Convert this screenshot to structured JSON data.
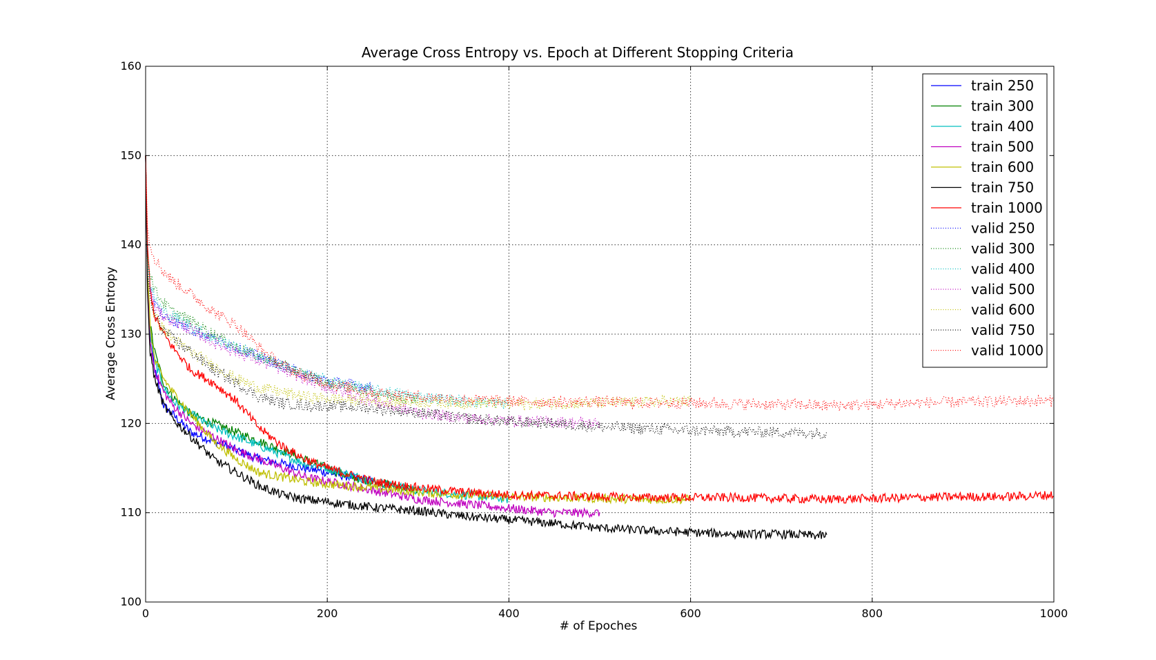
{
  "chart_data": {
    "type": "line",
    "title": "Average Cross Entropy vs. Epoch  at Different Stopping Criteria",
    "xlabel": "# of Epoches",
    "ylabel": "Average Cross Entropy",
    "xlim": [
      0,
      1000
    ],
    "ylim": [
      100,
      160
    ],
    "xticks": [
      "0",
      "200",
      "400",
      "600",
      "800",
      "1000"
    ],
    "yticks": [
      "100",
      "110",
      "120",
      "130",
      "140",
      "150",
      "160"
    ],
    "grid": true,
    "legend_position": "top-right",
    "series": [
      {
        "name": "train 250",
        "style": "solid",
        "color": "#0000ff",
        "x": [
          0,
          2,
          5,
          10,
          20,
          30,
          50,
          75,
          100,
          125,
          150,
          175,
          200,
          225,
          250
        ],
        "y": [
          150,
          136,
          130,
          126,
          122,
          121,
          119,
          118,
          117,
          116,
          115.5,
          115,
          114.5,
          114,
          113.5
        ]
      },
      {
        "name": "train 300",
        "style": "solid",
        "color": "#008000",
        "x": [
          0,
          2,
          5,
          10,
          20,
          30,
          50,
          75,
          100,
          125,
          150,
          175,
          200,
          225,
          250,
          275,
          300
        ],
        "y": [
          150,
          137,
          131,
          128,
          124.5,
          123,
          121,
          120,
          119,
          118,
          117,
          116,
          115,
          114,
          113.5,
          113,
          112.5
        ]
      },
      {
        "name": "train 400",
        "style": "solid",
        "color": "#00bfbf",
        "x": [
          0,
          2,
          5,
          10,
          20,
          30,
          50,
          75,
          100,
          125,
          150,
          175,
          200,
          250,
          300,
          350,
          400
        ],
        "y": [
          150,
          137,
          130,
          127,
          124,
          122.5,
          121,
          119.5,
          118.5,
          117.5,
          116.5,
          115.5,
          115,
          113.5,
          112.5,
          112,
          111.5
        ]
      },
      {
        "name": "train 500",
        "style": "solid",
        "color": "#bf00bf",
        "x": [
          0,
          2,
          5,
          10,
          20,
          30,
          50,
          75,
          100,
          125,
          150,
          175,
          200,
          250,
          300,
          350,
          400,
          450,
          500
        ],
        "y": [
          150,
          136,
          129,
          126,
          123.5,
          122,
          120,
          118.5,
          117,
          116,
          115,
          114,
          113.5,
          112.5,
          111.5,
          111,
          110.5,
          110,
          110
        ]
      },
      {
        "name": "train 600",
        "style": "solid",
        "color": "#bfbf00",
        "x": [
          0,
          2,
          5,
          10,
          20,
          30,
          50,
          75,
          100,
          125,
          150,
          175,
          200,
          250,
          300,
          350,
          400,
          450,
          500,
          550,
          600
        ],
        "y": [
          150,
          137,
          131,
          127,
          125,
          123.5,
          121,
          118,
          116,
          114.5,
          114,
          113.5,
          113.2,
          112.8,
          112.3,
          112,
          111.8,
          111.7,
          111.6,
          111.5,
          111.5
        ]
      },
      {
        "name": "train 750",
        "style": "solid",
        "color": "#000000",
        "x": [
          0,
          2,
          5,
          10,
          20,
          30,
          50,
          75,
          100,
          125,
          150,
          175,
          200,
          250,
          300,
          350,
          400,
          450,
          500,
          550,
          600,
          650,
          700,
          750
        ],
        "y": [
          150,
          135,
          128,
          125,
          122,
          120.5,
          118.5,
          116,
          114.5,
          113,
          112,
          111.5,
          111.2,
          110.6,
          110.2,
          109.6,
          109.2,
          108.8,
          108.3,
          108,
          107.8,
          107.6,
          107.6,
          107.4
        ]
      },
      {
        "name": "train 1000",
        "style": "solid",
        "color": "#ff0000",
        "x": [
          0,
          2,
          5,
          10,
          20,
          30,
          50,
          75,
          100,
          125,
          150,
          175,
          200,
          250,
          300,
          350,
          400,
          450,
          500,
          550,
          600,
          650,
          700,
          750,
          800,
          850,
          900,
          950,
          1000
        ],
        "y": [
          150,
          140,
          135,
          132,
          130,
          128.5,
          126,
          124.5,
          122.5,
          119.5,
          117.5,
          116,
          115,
          113.5,
          112.8,
          112.3,
          112,
          111.9,
          111.8,
          111.7,
          111.7,
          111.7,
          111.6,
          111.5,
          111.6,
          111.7,
          111.8,
          111.8,
          112
        ]
      },
      {
        "name": "valid 250",
        "style": "dotted",
        "color": "#0000ff",
        "x": [
          0,
          2,
          5,
          10,
          20,
          30,
          50,
          75,
          100,
          125,
          150,
          175,
          200,
          225,
          250
        ],
        "y": [
          150,
          138,
          135,
          133.5,
          132,
          131.5,
          130.5,
          129.5,
          128.5,
          127.5,
          126.5,
          125.5,
          124.8,
          124.4,
          124
        ]
      },
      {
        "name": "valid 300",
        "style": "dotted",
        "color": "#008000",
        "x": [
          0,
          2,
          5,
          10,
          20,
          30,
          50,
          75,
          100,
          125,
          150,
          175,
          200,
          225,
          250,
          275,
          300
        ],
        "y": [
          150,
          139,
          137,
          135,
          133.5,
          132.5,
          131.5,
          130,
          128.5,
          127.5,
          126.5,
          125.5,
          124.5,
          124,
          123.5,
          123,
          122.8
        ]
      },
      {
        "name": "valid 400",
        "style": "dotted",
        "color": "#00bfbf",
        "x": [
          0,
          2,
          5,
          10,
          20,
          30,
          50,
          75,
          100,
          125,
          150,
          175,
          200,
          250,
          300,
          350,
          400
        ],
        "y": [
          150,
          138,
          135.5,
          134,
          132.5,
          132,
          131,
          129.5,
          128.5,
          127.5,
          126.5,
          125.5,
          124.8,
          123.8,
          123,
          122.5,
          122.2
        ]
      },
      {
        "name": "valid 500",
        "style": "dotted",
        "color": "#bf00bf",
        "x": [
          0,
          2,
          5,
          10,
          20,
          30,
          50,
          75,
          100,
          125,
          150,
          175,
          200,
          250,
          300,
          350,
          400,
          450,
          500
        ],
        "y": [
          150,
          137,
          134.5,
          133,
          132,
          131.5,
          130.5,
          129,
          128,
          127,
          126,
          125,
          124,
          122.5,
          121.2,
          120.6,
          120.3,
          120.2,
          120
        ]
      },
      {
        "name": "valid 600",
        "style": "dotted",
        "color": "#bfbf00",
        "x": [
          0,
          2,
          5,
          10,
          20,
          30,
          50,
          75,
          100,
          125,
          150,
          175,
          200,
          250,
          300,
          350,
          400,
          450,
          500,
          550,
          600
        ],
        "y": [
          150,
          137,
          134,
          132,
          130.5,
          129.5,
          128,
          126.5,
          125,
          124,
          123.5,
          123,
          122.8,
          122.5,
          122.4,
          122.3,
          122.2,
          122.2,
          122.3,
          122.4,
          122.5
        ]
      },
      {
        "name": "valid 750",
        "style": "dotted",
        "color": "#000000",
        "x": [
          0,
          2,
          5,
          10,
          20,
          30,
          50,
          75,
          100,
          125,
          150,
          175,
          200,
          250,
          300,
          350,
          400,
          450,
          500,
          550,
          600,
          650,
          700,
          750
        ],
        "y": [
          150,
          137,
          134,
          132,
          130.5,
          129.5,
          128,
          126,
          124.5,
          123,
          122.3,
          122,
          122,
          121.7,
          121.2,
          120.6,
          120.2,
          120,
          119.6,
          119.4,
          119.2,
          119.1,
          119,
          118.9
        ]
      },
      {
        "name": "valid 1000",
        "style": "dotted",
        "color": "#ff0000",
        "x": [
          0,
          2,
          5,
          10,
          20,
          30,
          50,
          75,
          100,
          125,
          150,
          175,
          200,
          250,
          300,
          350,
          400,
          450,
          500,
          550,
          600,
          650,
          700,
          750,
          800,
          850,
          900,
          950,
          1000
        ],
        "y": [
          150,
          142,
          140,
          138.5,
          137,
          136,
          134.5,
          132.5,
          131,
          128.5,
          126.5,
          125.3,
          124.5,
          123.5,
          123,
          122.7,
          122.5,
          122.4,
          122.4,
          122.3,
          122.3,
          122.2,
          122.1,
          122,
          122.1,
          122.3,
          122.4,
          122.5,
          122.5
        ]
      }
    ]
  }
}
